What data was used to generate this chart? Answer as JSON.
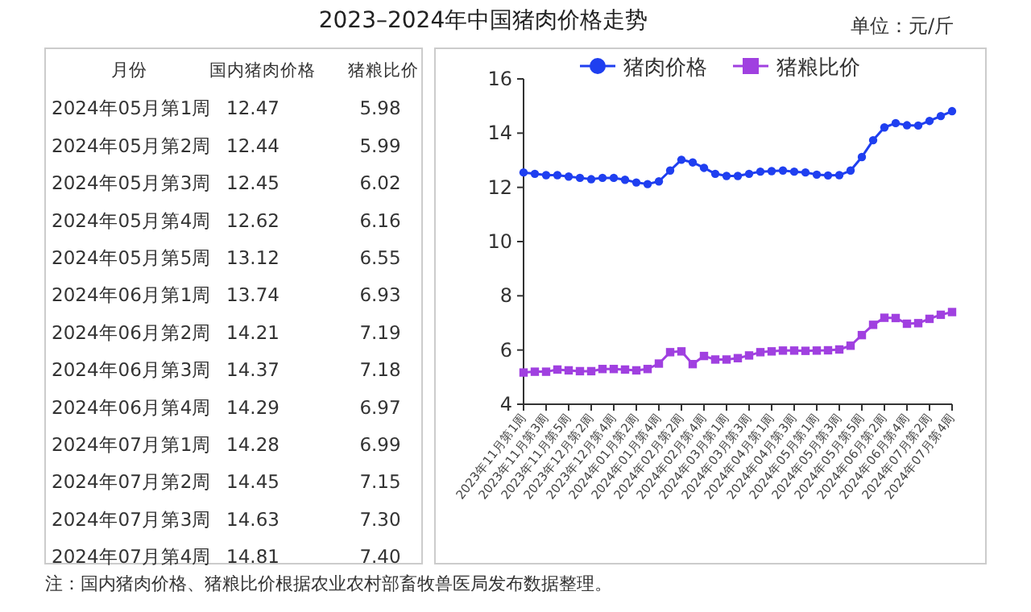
{
  "chart_data": [
    {
      "type": "other",
      "title": "2023–2024年中国猪肉价格走势",
      "legend_title": "月份",
      "categories": [
        "2024年05月第1周",
        "2024年05月第2周",
        "2024年05月第3周",
        "2024年05月第4周",
        "2024年05月第5周",
        "2024年06月第1周",
        "2024年06月第2周",
        "2024年06月第3周",
        "2024年06月第4周",
        "2024年07月第1周",
        "2024年07月第2周",
        "2024年07月第3周",
        "2024年07月第4周"
      ],
      "series": [
        {
          "name": "国内猪肉价格",
          "values": [
            12.47,
            12.44,
            12.45,
            12.62,
            13.12,
            13.74,
            14.21,
            14.37,
            14.29,
            14.28,
            14.45,
            14.63,
            14.81
          ],
          "value_labels": [
            "12.47",
            "12.44",
            "12.45",
            "12.62",
            "13.12",
            "13.74",
            "14.21",
            "14.37",
            "14.29",
            "14.28",
            "14.45",
            "14.63",
            "14.81"
          ]
        },
        {
          "name": "猪粮比价",
          "values": [
            5.98,
            5.99,
            6.02,
            6.16,
            6.55,
            6.93,
            7.19,
            7.18,
            6.97,
            6.99,
            7.15,
            7.3,
            7.4
          ],
          "value_labels": [
            "5.98",
            "5.99",
            "6.02",
            "6.16",
            "6.55",
            "6.93",
            "7.19",
            "7.18",
            "6.97",
            "6.99",
            "7.15",
            "7.30",
            "7.40"
          ]
        }
      ],
      "annotations": [
        "单位：元/斤",
        "注：国内猪肉价格、猪粮比价根据农业农村部畜牧兽医局发布数据整理。"
      ]
    },
    {
      "type": "line",
      "legend": "top",
      "grid": false,
      "ylim": [
        4,
        16
      ],
      "yticks": [
        4,
        6,
        8,
        10,
        12,
        14,
        16
      ],
      "categories": [
        "2023年11月第1周",
        null,
        "2023年11月第3周",
        null,
        "2023年11月第5周",
        null,
        "2023年12月第2周",
        null,
        "2023年12月第4周",
        null,
        "2024年01月第2周",
        null,
        "2024年01月第4周",
        null,
        "2024年02月第2周",
        null,
        "2024年02月第4周",
        null,
        "2024年03月第1周",
        null,
        "2024年03月第3周",
        null,
        "2024年04月第1周",
        null,
        "2024年04月第3周",
        null,
        "2024年05月第1周",
        null,
        "2024年05月第3周",
        null,
        "2024年05月第5周",
        null,
        "2024年06月第2周",
        null,
        "2024年06月第4周",
        null,
        "2024年07月第2周",
        null,
        "2024年07月第4周"
      ],
      "series": [
        {
          "name": "猪肉价格",
          "color": "#1f3ff0",
          "marker": "circle",
          "values": [
            12.55,
            12.5,
            12.45,
            12.45,
            12.4,
            12.35,
            12.3,
            12.35,
            12.35,
            12.28,
            12.18,
            12.12,
            12.22,
            12.62,
            13.02,
            12.92,
            12.72,
            12.5,
            12.42,
            12.42,
            12.5,
            12.58,
            12.6,
            12.62,
            12.58,
            12.55,
            12.47,
            12.44,
            12.45,
            12.62,
            13.12,
            13.74,
            14.21,
            14.37,
            14.29,
            14.28,
            14.45,
            14.63,
            14.81
          ]
        },
        {
          "name": "猪粮比价",
          "color": "#a040e0",
          "marker": "square",
          "values": [
            5.17,
            5.2,
            5.2,
            5.28,
            5.25,
            5.22,
            5.22,
            5.3,
            5.3,
            5.28,
            5.25,
            5.3,
            5.5,
            5.92,
            5.95,
            5.48,
            5.78,
            5.65,
            5.65,
            5.7,
            5.8,
            5.92,
            5.95,
            5.98,
            5.98,
            5.97,
            5.98,
            5.99,
            6.02,
            6.16,
            6.55,
            6.93,
            7.19,
            7.18,
            6.97,
            6.99,
            7.15,
            7.3,
            7.4
          ]
        }
      ]
    }
  ]
}
